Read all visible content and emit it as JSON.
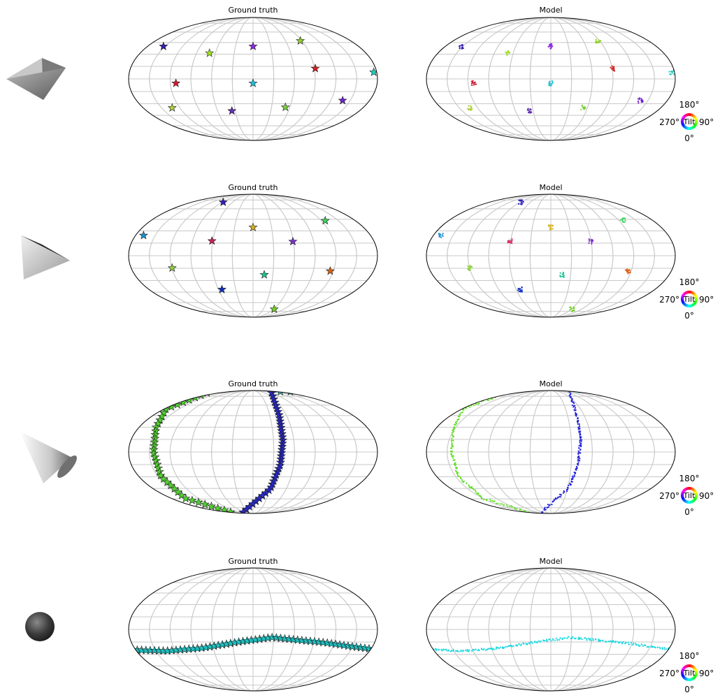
{
  "colors": {
    "outline": "#000000",
    "grid": "#c8c8c8",
    "star_edge": "#1a1a1a"
  },
  "colorwheel": {
    "label": "Tilt",
    "top": "180°",
    "right": "90°",
    "bottom": "0°",
    "left": "270°"
  },
  "rows": [
    {
      "shape": "octahedron-icon",
      "gt_title": "Ground truth",
      "model_title": "Model"
    },
    {
      "shape": "tetrahedron-icon",
      "gt_title": "Ground truth",
      "model_title": "Model"
    },
    {
      "shape": "cone-icon",
      "gt_title": "Ground truth",
      "model_title": "Model"
    },
    {
      "shape": "sphere-icon",
      "gt_title": "Ground truth",
      "model_title": "Model"
    }
  ],
  "chart_data": [
    {
      "type": "scatter",
      "projection": "mollweide",
      "title": "Ground truth",
      "marker": "star",
      "points": [
        [
          -0.72,
          0.53,
          "#3020b0"
        ],
        [
          -0.35,
          0.42,
          "#a0e020"
        ],
        [
          0.0,
          0.53,
          "#8a2be2"
        ],
        [
          0.38,
          0.62,
          "#90d030"
        ],
        [
          0.5,
          0.17,
          "#d42020"
        ],
        [
          -0.62,
          -0.07,
          "#d41830"
        ],
        [
          0.0,
          -0.07,
          "#20c0d8"
        ],
        [
          0.97,
          0.11,
          "#20d0c0"
        ],
        [
          -0.65,
          -0.47,
          "#b0d040"
        ],
        [
          -0.17,
          -0.52,
          "#6030b0"
        ],
        [
          0.26,
          -0.46,
          "#7cd040"
        ],
        [
          0.72,
          -0.35,
          "#7020d0"
        ]
      ]
    },
    {
      "type": "scatter",
      "projection": "mollweide",
      "title": "Model",
      "marker": "dot",
      "points": [
        [
          -0.72,
          0.53,
          "#3020b0"
        ],
        [
          -0.35,
          0.42,
          "#a0e020"
        ],
        [
          0.0,
          0.53,
          "#8a2be2"
        ],
        [
          0.38,
          0.62,
          "#90d030"
        ],
        [
          0.5,
          0.17,
          "#d42020"
        ],
        [
          -0.62,
          -0.07,
          "#d41830"
        ],
        [
          0.0,
          -0.07,
          "#20c0d8"
        ],
        [
          0.97,
          0.11,
          "#20d0c0"
        ],
        [
          -0.65,
          -0.47,
          "#b0d040"
        ],
        [
          -0.17,
          -0.52,
          "#6030b0"
        ],
        [
          0.26,
          -0.46,
          "#7cd040"
        ],
        [
          0.72,
          -0.35,
          "#7020d0"
        ]
      ]
    },
    {
      "type": "scatter",
      "projection": "mollweide",
      "title": "Ground truth",
      "marker": "star",
      "points": [
        [
          -0.24,
          0.87,
          "#3020c0"
        ],
        [
          -0.88,
          0.33,
          "#2090d0"
        ],
        [
          0.0,
          0.46,
          "#d0b020"
        ],
        [
          -0.33,
          0.24,
          "#d02060"
        ],
        [
          0.32,
          0.23,
          "#8030d0"
        ],
        [
          0.58,
          0.57,
          "#40d060"
        ],
        [
          -0.65,
          -0.2,
          "#90d040"
        ],
        [
          0.09,
          -0.31,
          "#20c090"
        ],
        [
          0.62,
          -0.25,
          "#e06010"
        ],
        [
          -0.25,
          -0.55,
          "#1030c0"
        ],
        [
          -0.98,
          -0.47,
          "#d020b0"
        ],
        [
          0.17,
          -0.87,
          "#70d020"
        ]
      ]
    },
    {
      "type": "scatter",
      "projection": "mollweide",
      "title": "Model",
      "marker": "dot",
      "points": [
        [
          -0.24,
          0.87,
          "#3020c0"
        ],
        [
          -0.88,
          0.33,
          "#2090d0"
        ],
        [
          0.0,
          0.46,
          "#d0b020"
        ],
        [
          -0.33,
          0.24,
          "#d02060"
        ],
        [
          0.32,
          0.23,
          "#8030d0"
        ],
        [
          0.58,
          0.57,
          "#40d060"
        ],
        [
          -0.65,
          -0.2,
          "#90d040"
        ],
        [
          0.09,
          -0.31,
          "#20c090"
        ],
        [
          0.62,
          -0.25,
          "#e06010"
        ],
        [
          -0.25,
          -0.55,
          "#1030c0"
        ],
        [
          -0.98,
          -0.47,
          "#d020b0"
        ],
        [
          0.17,
          -0.87,
          "#70d020"
        ]
      ]
    },
    {
      "type": "scatter",
      "projection": "mollweide",
      "title": "Ground truth",
      "marker": "star",
      "curves": [
        {
          "color": "#50d030",
          "count": 40,
          "points": [
            [
              -0.37,
              0.96
            ],
            [
              -0.7,
              0.7
            ],
            [
              -0.78,
              0.4
            ],
            [
              -0.8,
              0.0
            ],
            [
              -0.74,
              -0.4
            ],
            [
              -0.55,
              -0.75
            ],
            [
              -0.18,
              -0.98
            ]
          ]
        },
        {
          "color": "#2828c8",
          "count": 40,
          "points": [
            [
              0.15,
              0.96
            ],
            [
              0.21,
              0.6
            ],
            [
              0.24,
              0.2
            ],
            [
              0.22,
              -0.2
            ],
            [
              0.14,
              -0.6
            ],
            [
              -0.08,
              -0.98
            ]
          ]
        },
        {
          "color": "#30c0c0",
          "count": 2,
          "points": [
            [
              0.22,
              0.98
            ],
            [
              0.3,
              0.98
            ]
          ]
        }
      ]
    },
    {
      "type": "scatter",
      "projection": "mollweide",
      "title": "Model",
      "marker": "dot",
      "curves": [
        {
          "color": "#60e020",
          "count": 160,
          "points": [
            [
              -0.37,
              0.96
            ],
            [
              -0.7,
              0.7
            ],
            [
              -0.78,
              0.4
            ],
            [
              -0.8,
              0.0
            ],
            [
              -0.74,
              -0.4
            ],
            [
              -0.55,
              -0.75
            ],
            [
              -0.18,
              -0.98
            ]
          ]
        },
        {
          "color": "#2020d8",
          "count": 160,
          "points": [
            [
              0.15,
              0.96
            ],
            [
              0.21,
              0.6
            ],
            [
              0.24,
              0.2
            ],
            [
              0.22,
              -0.2
            ],
            [
              0.14,
              -0.6
            ],
            [
              -0.08,
              -0.98
            ]
          ]
        },
        {
          "color": "#40d0d8",
          "count": 12,
          "points": [
            [
              0.22,
              0.98
            ],
            [
              0.3,
              0.98
            ]
          ]
        }
      ]
    },
    {
      "type": "scatter",
      "projection": "mollweide",
      "title": "Ground truth",
      "marker": "star",
      "curves": [
        {
          "color": "#20c0c0",
          "count": 60,
          "points": [
            [
              -1.0,
              -0.33
            ],
            [
              -0.7,
              -0.35
            ],
            [
              -0.4,
              -0.3
            ],
            [
              -0.1,
              -0.2
            ],
            [
              0.15,
              -0.13
            ],
            [
              0.35,
              -0.17
            ],
            [
              0.6,
              -0.22
            ],
            [
              0.8,
              -0.28
            ],
            [
              1.0,
              -0.33
            ]
          ]
        }
      ]
    },
    {
      "type": "scatter",
      "projection": "mollweide",
      "title": "Model",
      "marker": "dot",
      "curves": [
        {
          "color": "#20d8e0",
          "count": 240,
          "points": [
            [
              -1.0,
              -0.33
            ],
            [
              -0.7,
              -0.35
            ],
            [
              -0.4,
              -0.3
            ],
            [
              -0.1,
              -0.2
            ],
            [
              0.15,
              -0.13
            ],
            [
              0.35,
              -0.17
            ],
            [
              0.6,
              -0.22
            ],
            [
              0.8,
              -0.28
            ],
            [
              1.0,
              -0.33
            ]
          ]
        }
      ]
    }
  ]
}
